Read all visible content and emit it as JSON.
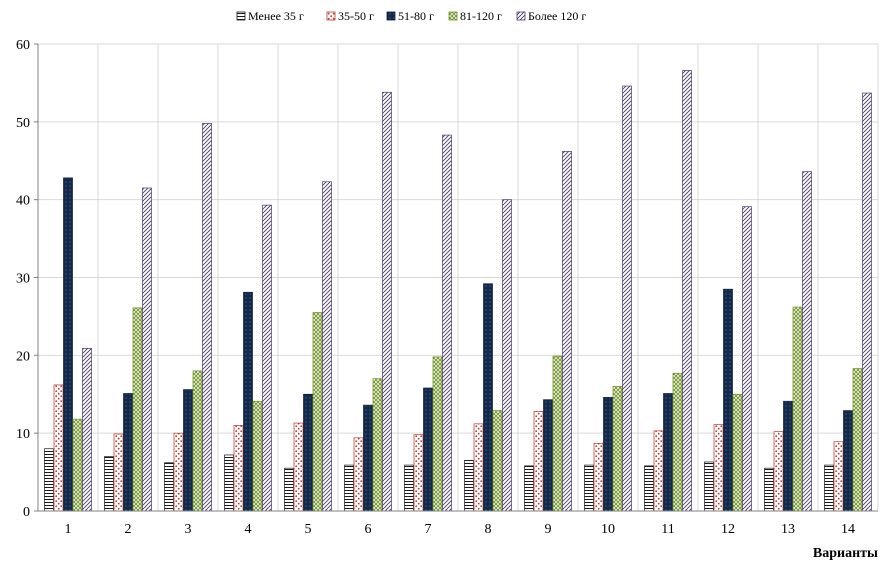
{
  "chart_data": {
    "type": "bar",
    "xlabel": "Варианты",
    "ylabel": "",
    "ylim": [
      0,
      60
    ],
    "yticks": [
      0,
      10,
      20,
      30,
      40,
      50,
      60
    ],
    "grid": "vertical-and-horizontal",
    "legend_position": "top-center",
    "categories": [
      "1",
      "2",
      "3",
      "4",
      "5",
      "6",
      "7",
      "8",
      "9",
      "10",
      "11",
      "12",
      "13",
      "14"
    ],
    "series": [
      {
        "name": "Менее 35 г",
        "pattern": "horizontal-lines",
        "color": "#2b2b2b",
        "values": [
          8.0,
          7.0,
          6.2,
          7.2,
          5.5,
          5.9,
          5.9,
          6.5,
          5.8,
          5.9,
          5.8,
          6.3,
          5.5,
          5.9
        ]
      },
      {
        "name": "35-50 г",
        "pattern": "red-dots",
        "color": "#c0392b",
        "values": [
          16.2,
          9.9,
          10.0,
          11.0,
          11.3,
          9.4,
          9.8,
          11.2,
          12.8,
          8.7,
          10.3,
          11.1,
          10.2,
          8.9
        ]
      },
      {
        "name": "51-80 г",
        "pattern": "solid-navy-dots",
        "color": "#13294b",
        "values": [
          42.8,
          15.1,
          15.6,
          28.1,
          15.0,
          13.6,
          15.8,
          29.2,
          14.3,
          14.6,
          15.1,
          28.5,
          14.1,
          12.9
        ]
      },
      {
        "name": "81-120 г",
        "pattern": "green-crosshatch",
        "color": "#6b8e23",
        "values": [
          11.8,
          26.1,
          18.0,
          14.1,
          25.5,
          17.0,
          19.8,
          12.9,
          19.9,
          16.0,
          17.7,
          15.0,
          26.2,
          18.3
        ]
      },
      {
        "name": "Более 120 г",
        "pattern": "purple-diagonal",
        "color": "#4b3a6b",
        "values": [
          20.9,
          41.5,
          49.8,
          39.3,
          42.3,
          53.8,
          48.3,
          40.0,
          46.2,
          54.6,
          56.6,
          39.1,
          43.6,
          53.7
        ]
      }
    ]
  }
}
